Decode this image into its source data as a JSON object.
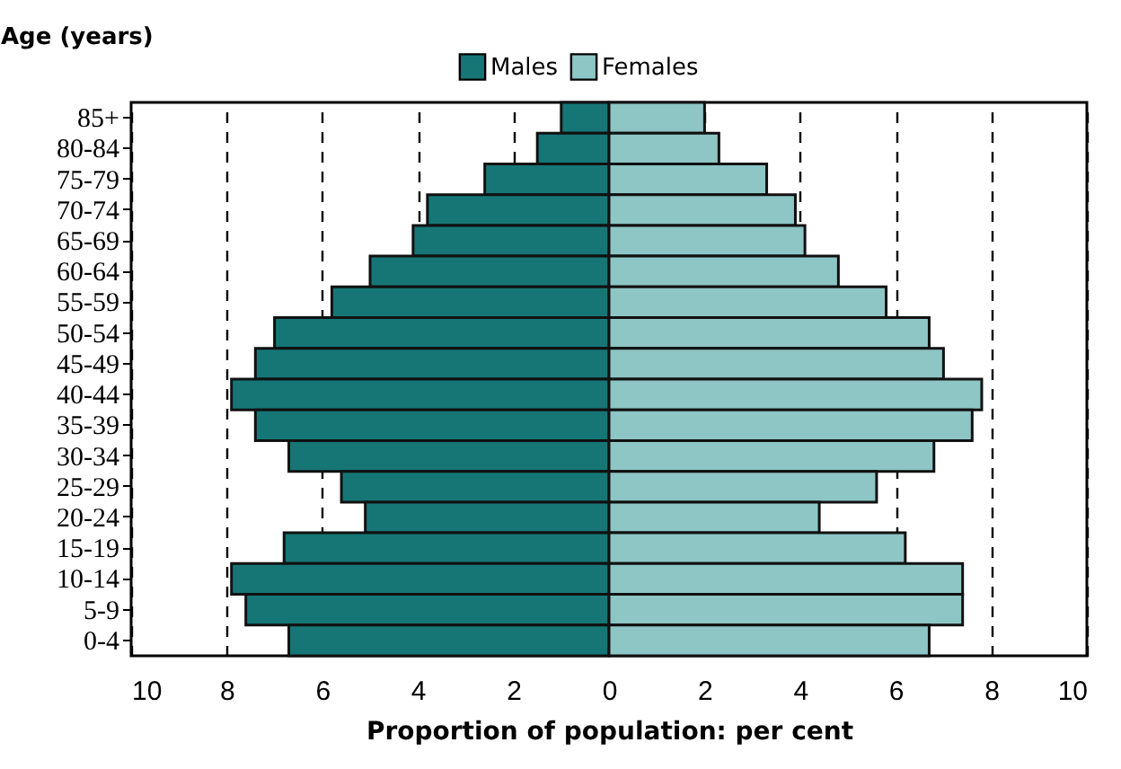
{
  "chart_data": {
    "type": "bar",
    "orientation": "horizontal",
    "ylabel": "Age (years)",
    "xlabel": "Proportion of population: per cent",
    "categories": [
      "85+",
      "80-84",
      "75-79",
      "70-74",
      "65-69",
      "60-64",
      "55-59",
      "50-54",
      "45-49",
      "40-44",
      "35-39",
      "30-34",
      "25-29",
      "20-24",
      "15-19",
      "10-14",
      "5-9",
      "0-4"
    ],
    "series": [
      {
        "name": "Males",
        "color": "#167676",
        "values": [
          -1.0,
          -1.5,
          -2.6,
          -3.8,
          -4.1,
          -5.0,
          -5.8,
          -7.0,
          -7.4,
          -7.9,
          -7.4,
          -6.7,
          -5.6,
          -5.1,
          -6.8,
          -7.9,
          -7.6,
          -6.7
        ]
      },
      {
        "name": "Females",
        "color": "#8ec5c5",
        "values": [
          2.0,
          2.3,
          3.3,
          3.9,
          4.1,
          4.8,
          5.8,
          6.7,
          7.0,
          7.8,
          7.6,
          6.8,
          5.6,
          4.4,
          6.2,
          7.4,
          7.4,
          6.7
        ]
      }
    ],
    "xlim": [
      -10,
      10
    ],
    "xticks": [
      {
        "value": -10,
        "label": "10"
      },
      {
        "value": -8,
        "label": "8"
      },
      {
        "value": -6,
        "label": "6"
      },
      {
        "value": -4,
        "label": "4"
      },
      {
        "value": -2,
        "label": "2"
      },
      0,
      2,
      4,
      6,
      8,
      10
    ],
    "stacked": true,
    "grid": "x",
    "legend": "top"
  }
}
